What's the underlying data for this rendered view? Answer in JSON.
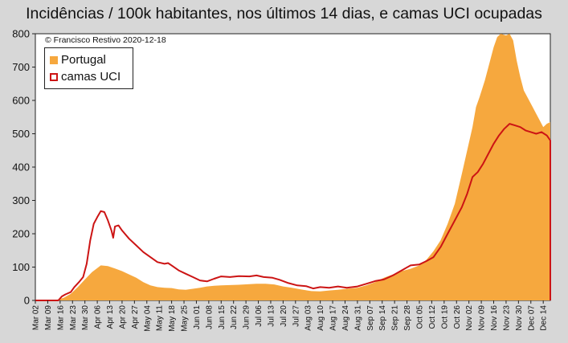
{
  "chart_data": {
    "type": "area",
    "title": "Incidências / 100k habitantes, nos últimos 14 dias, e camas UCI ocupadas",
    "annotation": "© Francisco Restivo 2020-12-18",
    "ylim": [
      0,
      800
    ],
    "yticks": [
      0,
      100,
      200,
      300,
      400,
      500,
      600,
      700,
      800
    ],
    "xlim": [
      "2020-03-02",
      "2020-12-18"
    ],
    "xticks": [
      "Mar 02",
      "Mar 09",
      "Mar 16",
      "Mar 23",
      "Mar 30",
      "Apr 06",
      "Apr 13",
      "Apr 20",
      "Apr 27",
      "May 04",
      "May 11",
      "May 18",
      "May 25",
      "Jun 01",
      "Jun 08",
      "Jun 15",
      "Jun 22",
      "Jun 29",
      "Jul 06",
      "Jul 13",
      "Jul 20",
      "Jul 27",
      "Aug 03",
      "Aug 10",
      "Aug 17",
      "Aug 24",
      "Aug 31",
      "Sep 07",
      "Sep 14",
      "Sep 21",
      "Sep 28",
      "Oct 05",
      "Oct 12",
      "Oct 19",
      "Oct 26",
      "Nov 02",
      "Nov 09",
      "Nov 16",
      "Nov 23",
      "Nov 30",
      "Dec 07",
      "Dec 14"
    ],
    "grid": false,
    "legend_position": "top-left",
    "series": [
      {
        "name": "Portugal",
        "style": "area",
        "color": "#f6a83e",
        "points": [
          [
            "2020-03-02",
            0
          ],
          [
            "2020-03-09",
            0
          ],
          [
            "2020-03-14",
            2
          ],
          [
            "2020-03-18",
            8
          ],
          [
            "2020-03-22",
            20
          ],
          [
            "2020-03-26",
            40
          ],
          [
            "2020-03-30",
            63
          ],
          [
            "2020-04-03",
            85
          ],
          [
            "2020-04-06",
            97
          ],
          [
            "2020-04-08",
            105
          ],
          [
            "2020-04-12",
            103
          ],
          [
            "2020-04-16",
            96
          ],
          [
            "2020-04-20",
            88
          ],
          [
            "2020-04-24",
            78
          ],
          [
            "2020-04-28",
            68
          ],
          [
            "2020-05-02",
            55
          ],
          [
            "2020-05-06",
            45
          ],
          [
            "2020-05-10",
            40
          ],
          [
            "2020-05-14",
            38
          ],
          [
            "2020-05-18",
            37
          ],
          [
            "2020-05-22",
            33
          ],
          [
            "2020-05-26",
            32
          ],
          [
            "2020-05-30",
            35
          ],
          [
            "2020-06-03",
            38
          ],
          [
            "2020-06-07",
            42
          ],
          [
            "2020-06-11",
            44
          ],
          [
            "2020-06-15",
            45
          ],
          [
            "2020-06-20",
            46
          ],
          [
            "2020-06-25",
            47
          ],
          [
            "2020-07-01",
            49
          ],
          [
            "2020-07-05",
            50
          ],
          [
            "2020-07-10",
            50
          ],
          [
            "2020-07-15",
            48
          ],
          [
            "2020-07-20",
            42
          ],
          [
            "2020-07-25",
            38
          ],
          [
            "2020-07-30",
            33
          ],
          [
            "2020-08-05",
            28
          ],
          [
            "2020-08-10",
            27
          ],
          [
            "2020-08-15",
            30
          ],
          [
            "2020-08-20",
            32
          ],
          [
            "2020-08-25",
            35
          ],
          [
            "2020-08-31",
            38
          ],
          [
            "2020-09-05",
            45
          ],
          [
            "2020-09-10",
            55
          ],
          [
            "2020-09-15",
            68
          ],
          [
            "2020-09-20",
            78
          ],
          [
            "2020-09-25",
            88
          ],
          [
            "2020-09-30",
            95
          ],
          [
            "2020-10-05",
            105
          ],
          [
            "2020-10-09",
            122
          ],
          [
            "2020-10-13",
            148
          ],
          [
            "2020-10-17",
            180
          ],
          [
            "2020-10-21",
            230
          ],
          [
            "2020-10-25",
            290
          ],
          [
            "2020-10-29",
            380
          ],
          [
            "2020-11-01",
            450
          ],
          [
            "2020-11-04",
            520
          ],
          [
            "2020-11-06",
            580
          ],
          [
            "2020-11-08",
            610
          ],
          [
            "2020-11-11",
            660
          ],
          [
            "2020-11-14",
            720
          ],
          [
            "2020-11-16",
            760
          ],
          [
            "2020-11-18",
            790
          ],
          [
            "2020-11-20",
            800
          ],
          [
            "2020-11-23",
            795
          ],
          [
            "2020-11-25",
            800
          ],
          [
            "2020-11-27",
            780
          ],
          [
            "2020-11-29",
            720
          ],
          [
            "2020-12-01",
            670
          ],
          [
            "2020-12-03",
            630
          ],
          [
            "2020-12-06",
            600
          ],
          [
            "2020-12-08",
            580
          ],
          [
            "2020-12-10",
            560
          ],
          [
            "2020-12-12",
            540
          ],
          [
            "2020-12-14",
            520
          ],
          [
            "2020-12-16",
            530
          ],
          [
            "2020-12-18",
            535
          ]
        ]
      },
      {
        "name": "camas UCI",
        "style": "line",
        "color": "#cc1414",
        "points": [
          [
            "2020-03-02",
            0
          ],
          [
            "2020-03-15",
            0
          ],
          [
            "2020-03-17",
            12
          ],
          [
            "2020-03-19",
            18
          ],
          [
            "2020-03-22",
            25
          ],
          [
            "2020-03-24",
            40
          ],
          [
            "2020-03-27",
            57
          ],
          [
            "2020-03-29",
            70
          ],
          [
            "2020-03-31",
            110
          ],
          [
            "2020-04-02",
            180
          ],
          [
            "2020-04-04",
            230
          ],
          [
            "2020-04-06",
            250
          ],
          [
            "2020-04-08",
            268
          ],
          [
            "2020-04-10",
            265
          ],
          [
            "2020-04-12",
            240
          ],
          [
            "2020-04-14",
            210
          ],
          [
            "2020-04-15",
            188
          ],
          [
            "2020-04-16",
            222
          ],
          [
            "2020-04-18",
            225
          ],
          [
            "2020-04-20",
            210
          ],
          [
            "2020-04-24",
            185
          ],
          [
            "2020-04-28",
            165
          ],
          [
            "2020-05-02",
            145
          ],
          [
            "2020-05-06",
            130
          ],
          [
            "2020-05-10",
            115
          ],
          [
            "2020-05-14",
            110
          ],
          [
            "2020-05-16",
            112
          ],
          [
            "2020-05-18",
            105
          ],
          [
            "2020-05-22",
            90
          ],
          [
            "2020-05-26",
            80
          ],
          [
            "2020-05-30",
            70
          ],
          [
            "2020-06-03",
            60
          ],
          [
            "2020-06-07",
            57
          ],
          [
            "2020-06-11",
            65
          ],
          [
            "2020-06-15",
            72
          ],
          [
            "2020-06-20",
            70
          ],
          [
            "2020-06-25",
            73
          ],
          [
            "2020-07-01",
            72
          ],
          [
            "2020-07-05",
            75
          ],
          [
            "2020-07-09",
            70
          ],
          [
            "2020-07-14",
            68
          ],
          [
            "2020-07-18",
            62
          ],
          [
            "2020-07-23",
            52
          ],
          [
            "2020-07-28",
            45
          ],
          [
            "2020-08-02",
            43
          ],
          [
            "2020-08-06",
            36
          ],
          [
            "2020-08-10",
            40
          ],
          [
            "2020-08-15",
            38
          ],
          [
            "2020-08-20",
            42
          ],
          [
            "2020-08-25",
            38
          ],
          [
            "2020-08-31",
            42
          ],
          [
            "2020-09-05",
            50
          ],
          [
            "2020-09-10",
            58
          ],
          [
            "2020-09-15",
            63
          ],
          [
            "2020-09-20",
            75
          ],
          [
            "2020-09-25",
            90
          ],
          [
            "2020-09-30",
            105
          ],
          [
            "2020-10-05",
            108
          ],
          [
            "2020-10-09",
            118
          ],
          [
            "2020-10-13",
            130
          ],
          [
            "2020-10-17",
            160
          ],
          [
            "2020-10-21",
            200
          ],
          [
            "2020-10-25",
            240
          ],
          [
            "2020-10-29",
            280
          ],
          [
            "2020-11-01",
            320
          ],
          [
            "2020-11-04",
            370
          ],
          [
            "2020-11-07",
            385
          ],
          [
            "2020-11-10",
            410
          ],
          [
            "2020-11-13",
            440
          ],
          [
            "2020-11-16",
            470
          ],
          [
            "2020-11-19",
            495
          ],
          [
            "2020-11-22",
            515
          ],
          [
            "2020-11-25",
            530
          ],
          [
            "2020-11-28",
            525
          ],
          [
            "2020-12-01",
            520
          ],
          [
            "2020-12-04",
            510
          ],
          [
            "2020-12-07",
            505
          ],
          [
            "2020-12-10",
            500
          ],
          [
            "2020-12-13",
            505
          ],
          [
            "2020-12-16",
            495
          ],
          [
            "2020-12-18",
            480
          ]
        ]
      }
    ]
  }
}
